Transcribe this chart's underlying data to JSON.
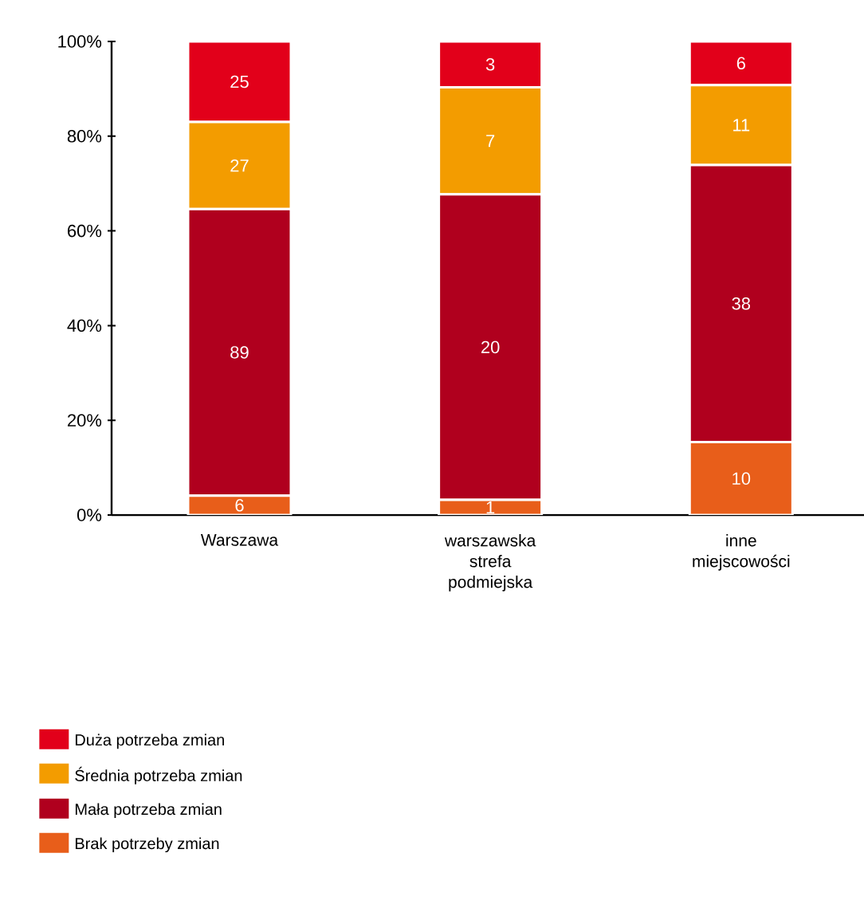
{
  "chart_data": {
    "type": "bar",
    "stacked": true,
    "categories": [
      "Warszawa",
      "warszawska strefa podmiejska",
      "inne miejscowości"
    ],
    "series": [
      {
        "name": "Brak potrzeby zmian",
        "color": "#e85e1a",
        "values": [
          4.1,
          3.2,
          15.4
        ]
      },
      {
        "name": "Mała potrzeba zmian",
        "color": "#b0001e",
        "values": [
          60.5,
          64.5,
          58.5
        ]
      },
      {
        "name": "Średnia potrzeba zmian",
        "color": "#f39c00",
        "values": [
          18.4,
          22.6,
          16.9
        ]
      },
      {
        "name": "Duża potrzeba zmian",
        "color": "#e2001a",
        "values": [
          17.0,
          9.7,
          9.2
        ]
      }
    ],
    "annotations": [
      "6",
      "89",
      "27",
      "25",
      "1",
      "20",
      "7",
      "3",
      "10",
      "38",
      "11",
      "6"
    ],
    "ylim": [
      0,
      100
    ],
    "yticks": [
      {
        "value": 0,
        "label": "0%"
      },
      {
        "value": 20,
        "label": "20%"
      },
      {
        "value": 40,
        "label": "40%"
      },
      {
        "value": 60,
        "label": "60%"
      },
      {
        "value": 80,
        "label": "80%"
      },
      {
        "value": 100,
        "label": "100%"
      }
    ],
    "legend": "bottom left",
    "grid": false
  }
}
